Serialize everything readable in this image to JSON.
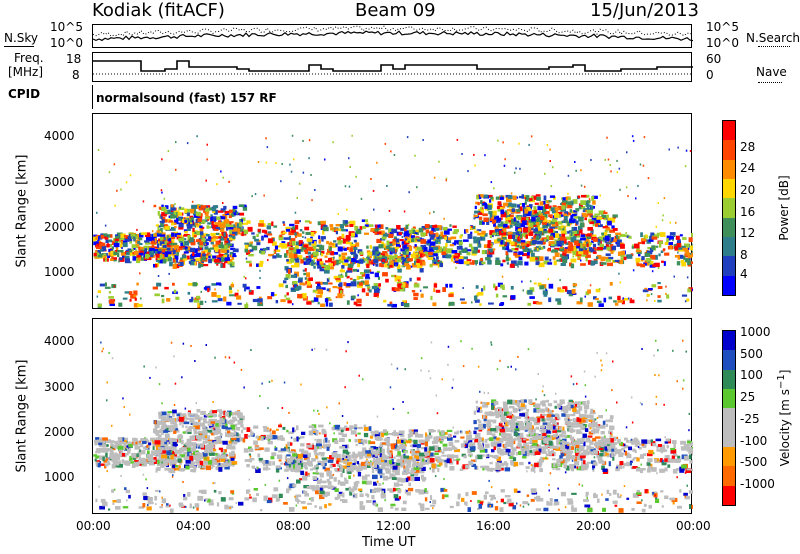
{
  "header": {
    "title": "Kodiak (fitACF)",
    "beam": "Beam 09",
    "date": "15/Jun/2013"
  },
  "noise": {
    "left_label": "N.Sky",
    "right_label": "N.Search",
    "ticks_left": [
      "10^5",
      "10^0"
    ],
    "ticks_right": [
      "10^5",
      "10^0"
    ]
  },
  "freq": {
    "label_line1": "Freq.",
    "label_line2": "[MHz]",
    "ticks_left": [
      "18",
      "8"
    ],
    "nave_label": "Nave",
    "ticks_right": [
      "60",
      "0"
    ]
  },
  "cpid": {
    "label": "CPID",
    "program": "normalsound (fast) 157 RF"
  },
  "colors": {
    "power": [
      "#0000ff",
      "#1f3fbf",
      "#2e7d8a",
      "#3e8f5a",
      "#9acd32",
      "#ffd700",
      "#ff8c00",
      "#ff4500",
      "#ff0000"
    ],
    "velocity": [
      "#ff0000",
      "#ff6a00",
      "#ff9a00",
      "#bdbdbd",
      "#bdbdbd",
      "#5ac82e",
      "#2e8b57",
      "#1f4fbf",
      "#0000cd"
    ]
  },
  "chart_data": [
    {
      "type": "heatmap",
      "ylabel": "Slant Range [km]",
      "xlabel": "Time UT",
      "ylim": [
        200,
        4600
      ],
      "y_ticks": [
        "1000",
        "2000",
        "3000",
        "4000"
      ],
      "x_ticks": [
        "00:00",
        "04:00",
        "08:00",
        "12:00",
        "16:00",
        "20:00",
        "00:00"
      ],
      "colorbar_label": "Power [dB]",
      "colorbar_ticks": [
        "4",
        "8",
        "12",
        "16",
        "20",
        "24",
        "28"
      ]
    },
    {
      "type": "heatmap",
      "ylabel": "Slant Range [km]",
      "xlabel": "Time UT",
      "ylim": [
        200,
        4600
      ],
      "y_ticks": [
        "1000",
        "2000",
        "3000",
        "4000"
      ],
      "x_ticks": [
        "00:00",
        "04:00",
        "08:00",
        "12:00",
        "16:00",
        "20:00",
        "00:00"
      ],
      "colorbar_label": "Velocity [m s^-1]",
      "colorbar_ticks": [
        "-1000",
        "-500",
        "-100",
        "-25",
        "25",
        "100",
        "500",
        "1000"
      ]
    }
  ]
}
